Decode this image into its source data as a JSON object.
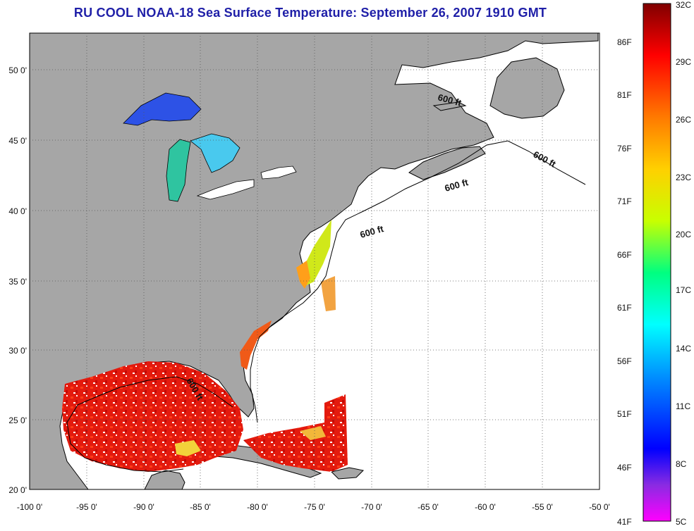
{
  "title": "RU COOL  NOAA-18  Sea Surface Temperature:  September 26, 2007 1910 GMT",
  "map": {
    "lon_range": [
      -100,
      -50
    ],
    "lat_range": [
      20,
      52.5
    ],
    "x_ticks": [
      "-100 0'",
      "-95 0'",
      "-90 0'",
      "-85 0'",
      "-80 0'",
      "-75 0'",
      "-70 0'",
      "-65 0'",
      "-60 0'",
      "-55 0'",
      "-50 0'"
    ],
    "y_ticks": [
      "50 0'",
      "45 0'",
      "40 0'",
      "35 0'",
      "30 0'",
      "25 0'",
      "20 0'"
    ],
    "grid": "dotted",
    "contour_labels": [
      "600 ft",
      "600 ft",
      "600 ft",
      "600 ft",
      "600 ft"
    ],
    "colors": {
      "land": "#a6a6a6",
      "ocean_nodata": "#ffffff",
      "coastline": "#000000"
    }
  },
  "colorbar": {
    "celsius_labels": [
      "32C",
      "29C",
      "26C",
      "23C",
      "20C",
      "17C",
      "14C",
      "11C",
      "8C",
      "5C"
    ],
    "fahrenheit_labels": [
      "86F",
      "81F",
      "76F",
      "71F",
      "66F",
      "61F",
      "56F",
      "51F",
      "46F",
      "41F"
    ],
    "range_c": [
      5,
      32
    ],
    "range_f": [
      41,
      90
    ]
  }
}
